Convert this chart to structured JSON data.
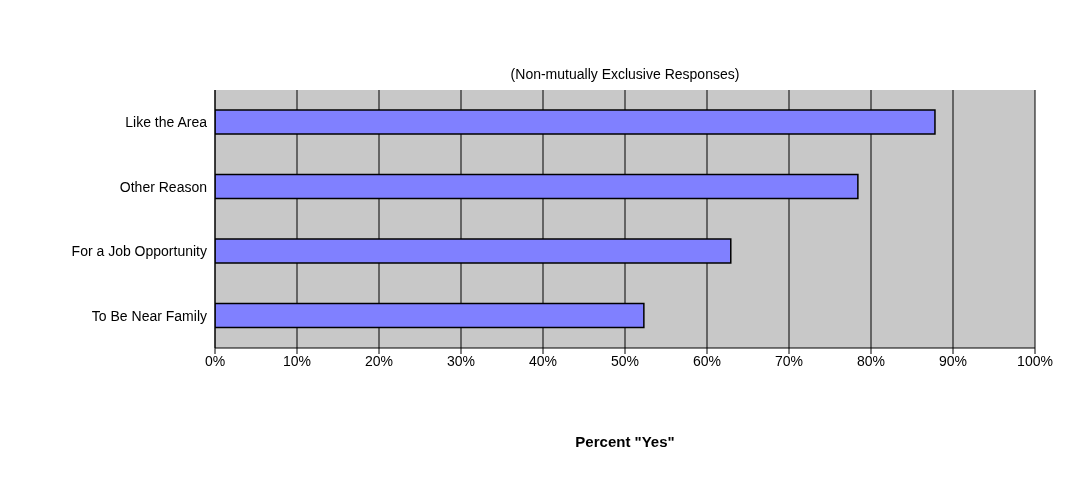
{
  "chart_data": {
    "type": "bar",
    "orientation": "horizontal",
    "title": "(Non-mutually Exclusive Responses)",
    "xlabel": "Percent \"Yes\"",
    "categories": [
      "Like the Area",
      "Other Reason",
      "For a Job Opportunity",
      "To Be Near Family"
    ],
    "values": [
      87.8,
      78.4,
      62.9,
      52.3
    ],
    "color": "#8080ff",
    "xlim": [
      0,
      100
    ],
    "xticks": [
      {
        "value": 0,
        "label": "0%"
      },
      {
        "value": 10,
        "label": "10%"
      },
      {
        "value": 20,
        "label": "20%"
      },
      {
        "value": 30,
        "label": "30%"
      },
      {
        "value": 40,
        "label": "40%"
      },
      {
        "value": 50,
        "label": "50%"
      },
      {
        "value": 60,
        "label": "60%"
      },
      {
        "value": 70,
        "label": "70%"
      },
      {
        "value": 80,
        "label": "80%"
      },
      {
        "value": 90,
        "label": "90%"
      },
      {
        "value": 100,
        "label": "100%"
      }
    ],
    "grid": "x",
    "legend": false
  }
}
